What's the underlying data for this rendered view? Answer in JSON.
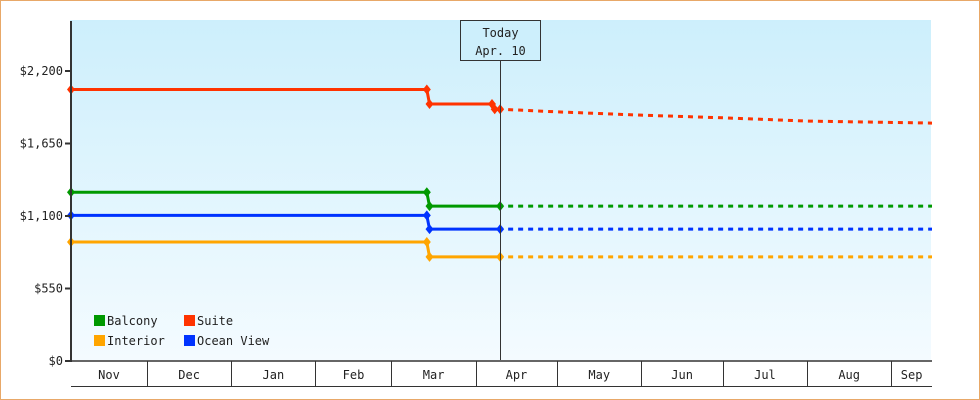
{
  "chart_data": {
    "type": "line",
    "title": "",
    "xlabel": "",
    "ylabel": "",
    "ylim": [
      0,
      2200
    ],
    "y_ticks": [
      0,
      550,
      1100,
      1650,
      2200
    ],
    "y_tick_labels": [
      "$0",
      "$550",
      "$1,100",
      "$1,650",
      "$2,200"
    ],
    "x_range": [
      "Nov 3",
      "Sep 16"
    ],
    "x_tick_labels": [
      "Nov",
      "Dec",
      "Jan",
      "Feb",
      "Mar",
      "Apr",
      "May",
      "Jun",
      "Jul",
      "Aug",
      "Sep"
    ],
    "grid": false,
    "legend_position": "bottom-left",
    "today": {
      "label": "Today",
      "date_label": "Apr. 10",
      "date": "Apr 10"
    },
    "series": [
      {
        "name": "Balcony",
        "color": "#009900",
        "actual": [
          [
            "Nov 3",
            1280
          ],
          [
            "Mar 14",
            1280
          ],
          [
            "Mar 15",
            1175
          ],
          [
            "Apr 10",
            1175
          ]
        ],
        "forecast": [
          [
            "Apr 10",
            1175
          ],
          [
            "Sep 16",
            1175
          ]
        ]
      },
      {
        "name": "Suite",
        "color": "#ff3300",
        "actual": [
          [
            "Nov 3",
            2060
          ],
          [
            "Mar 14",
            2060
          ],
          [
            "Mar 15",
            1950
          ],
          [
            "Apr 7",
            1950
          ],
          [
            "Apr 8",
            1910
          ],
          [
            "Apr 10",
            1910
          ]
        ],
        "forecast": [
          [
            "Apr 10",
            1910
          ],
          [
            "May 1",
            1890
          ],
          [
            "Jun 1",
            1865
          ],
          [
            "Jul 1",
            1845
          ],
          [
            "Aug 1",
            1820
          ],
          [
            "Sep 16",
            1805
          ]
        ]
      },
      {
        "name": "Interior",
        "color": "#ffa500",
        "actual": [
          [
            "Nov 3",
            903
          ],
          [
            "Mar 14",
            903
          ],
          [
            "Mar 15",
            790
          ],
          [
            "Apr 10",
            790
          ]
        ],
        "forecast": [
          [
            "Apr 10",
            790
          ],
          [
            "Sep 16",
            790
          ]
        ]
      },
      {
        "name": "Ocean View",
        "color": "#0033ff",
        "actual": [
          [
            "Nov 3",
            1105
          ],
          [
            "Mar 14",
            1105
          ],
          [
            "Mar 15",
            1000
          ],
          [
            "Apr 10",
            1000
          ]
        ],
        "forecast": [
          [
            "Apr 10",
            1000
          ],
          [
            "Sep 16",
            1000
          ]
        ]
      }
    ]
  }
}
